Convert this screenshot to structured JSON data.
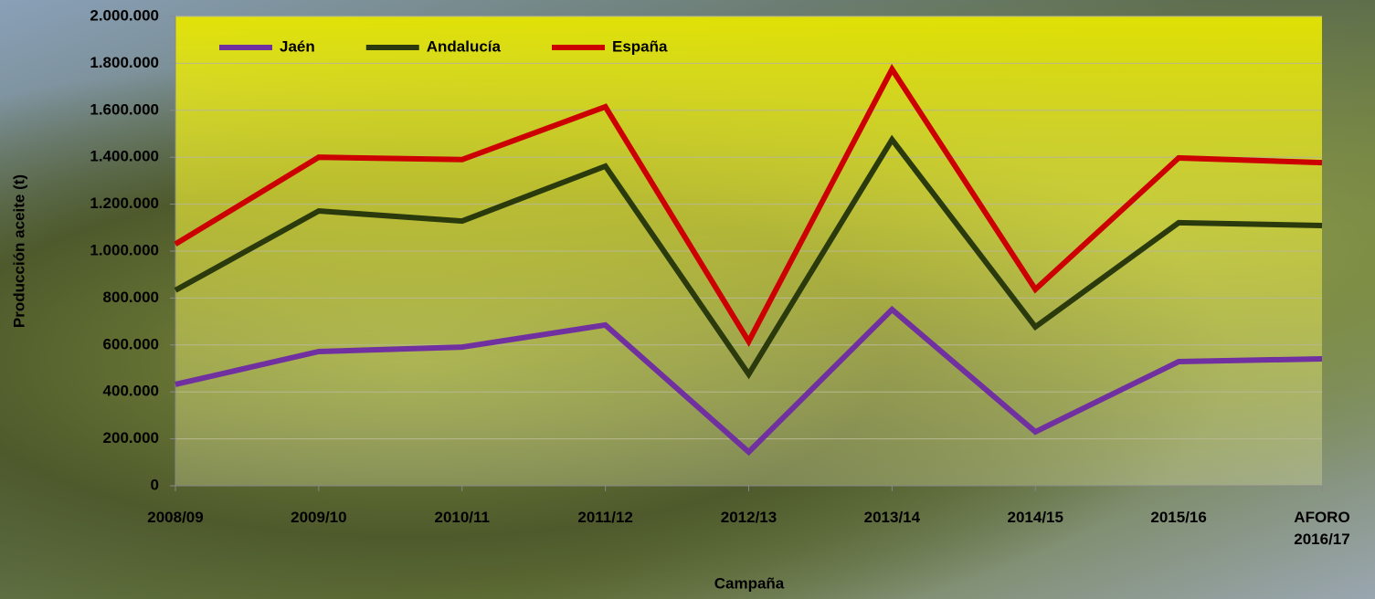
{
  "chart_data": {
    "type": "line",
    "x_label": "Campaña",
    "y_label": "Producción aceite (t)",
    "categories": [
      "2008/09",
      "2009/10",
      "2010/11",
      "2011/12",
      "2012/13",
      "2013/14",
      "2014/15",
      "2015/16",
      "AFORO 2016/17"
    ],
    "series": [
      {
        "name": "Jaén",
        "color": "#7030a0",
        "values": [
          432000,
          572000,
          591000,
          685000,
          144000,
          751000,
          230000,
          529000,
          541000
        ]
      },
      {
        "name": "Andalucía",
        "color": "#2b3a0c",
        "values": [
          833000,
          1171000,
          1128000,
          1362000,
          475000,
          1475000,
          677000,
          1121000,
          1109000
        ]
      },
      {
        "name": "España",
        "color": "#cc0000",
        "values": [
          1030000,
          1400000,
          1390000,
          1615000,
          615000,
          1775000,
          837000,
          1397000,
          1377000
        ]
      }
    ],
    "ylim": [
      0,
      2000000
    ],
    "yticks": [
      0,
      {
        "value": 200000,
        "label": "200.000"
      },
      {
        "value": 400000,
        "label": "400.000"
      },
      {
        "value": 600000,
        "label": "600.000"
      },
      {
        "value": 800000,
        "label": "800.000"
      },
      {
        "value": 1000000,
        "label": "1.000.000"
      },
      {
        "value": 1200000,
        "label": "1.200.000"
      },
      {
        "value": 1400000,
        "label": "1.400.000"
      },
      {
        "value": 1600000,
        "label": "1.600.000"
      },
      {
        "value": 1800000,
        "label": "1.800.000"
      },
      {
        "value": 2000000,
        "label": "2.000.000"
      }
    ],
    "grid": true,
    "legend": "top-left"
  }
}
